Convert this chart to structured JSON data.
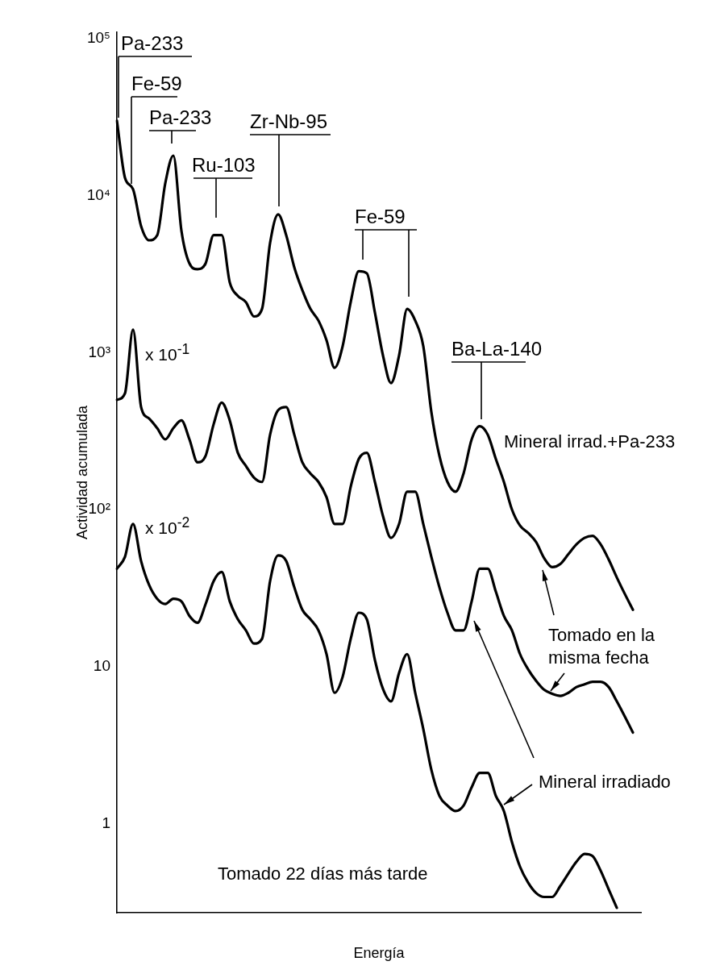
{
  "chart_data": {
    "type": "line",
    "xlabel": "Energía",
    "ylabel": "Actividad acumulada",
    "log": true,
    "marker": "none",
    "grid": false,
    "ylim": [
      0.27,
      110000
    ],
    "yticks": [
      {
        "value": 1,
        "label": "1"
      },
      {
        "value": 10,
        "label": "10"
      },
      {
        "value": 100,
        "label": "10²"
      },
      {
        "value": 1000,
        "label": "10³"
      },
      {
        "value": 10000,
        "label": "10⁴"
      },
      {
        "value": 100000,
        "label": "10⁵"
      }
    ],
    "categories": [
      null,
      null,
      null,
      null,
      null,
      null,
      null,
      null,
      null,
      null,
      null,
      null,
      null,
      null,
      null,
      null,
      null,
      null,
      null,
      null,
      null,
      null,
      null,
      null,
      null,
      null,
      null,
      null,
      null,
      null,
      null,
      null,
      null,
      null,
      null,
      null,
      null,
      null,
      null,
      null,
      null,
      null,
      null,
      null,
      null,
      null,
      null,
      null,
      null,
      null,
      null,
      null,
      null,
      null,
      null,
      null,
      null,
      null,
      null,
      null,
      null,
      null,
      null,
      null,
      null,
      null
    ],
    "series": [
      {
        "color": "#000000",
        "values": [
          30000,
          13000,
          11000,
          6400,
          5200,
          5600,
          12000,
          18000,
          6000,
          3700,
          3400,
          3700,
          5600,
          5600,
          2800,
          2300,
          2100,
          1700,
          1900,
          5000,
          7600,
          5600,
          3500,
          2500,
          1900,
          1600,
          1200,
          800,
          1100,
          2100,
          3300,
          3200,
          1800,
          960,
          640,
          960,
          1900,
          1600,
          1100,
          420,
          220,
          150,
          130,
          170,
          280,
          340,
          300,
          210,
          150,
          100,
          79,
          71,
          62,
          49,
          43,
          45,
          52,
          60,
          66,
          68,
          60,
          48,
          37,
          29,
          23,
          null
        ]
      },
      {
        "color": "#000000",
        "values": [
          500,
          550,
          1400,
          450,
          380,
          330,
          280,
          330,
          370,
          280,
          200,
          220,
          350,
          480,
          370,
          230,
          190,
          160,
          150,
          300,
          430,
          450,
          300,
          200,
          170,
          150,
          120,
          81,
          81,
          140,
          210,
          230,
          150,
          91,
          66,
          81,
          130,
          130,
          81,
          50,
          32,
          22,
          17,
          17,
          26,
          42,
          42,
          30,
          21,
          17,
          12,
          9.6,
          8.1,
          7.1,
          6.7,
          6.5,
          6.8,
          7.4,
          7.7,
          8.0,
          8.0,
          7.4,
          6.0,
          4.8,
          3.8,
          null
        ]
      },
      {
        "color": "#000000",
        "values": [
          42,
          50,
          81,
          47,
          33,
          27,
          25,
          27,
          26,
          21,
          19,
          25,
          35,
          40,
          26,
          20,
          17,
          14,
          15,
          35,
          51,
          47,
          32,
          23,
          20,
          17,
          12,
          6.8,
          8.6,
          15,
          22,
          20,
          11,
          7.2,
          6.0,
          9.1,
          12,
          6.8,
          4.0,
          2.2,
          1.5,
          1.3,
          1.2,
          1.3,
          1.7,
          2.1,
          2.1,
          1.5,
          1.2,
          0.76,
          0.53,
          0.42,
          0.36,
          0.34,
          0.34,
          0.4,
          0.48,
          0.57,
          0.64,
          0.62,
          0.5,
          0.38,
          0.29,
          null,
          null,
          null
        ]
      }
    ],
    "annotations": [
      "Pa-233",
      "Fe-59",
      "Pa-233",
      "Ru-103",
      "Zr-Nb-95",
      "Fe-59",
      "Ba-La-140",
      "x 10$^{-1}$",
      "x 10$^{-2}$",
      "Mineral irrad.+Pa-233",
      "Tomado en la misma fecha",
      "Mineral irradiado",
      "Tomado 22 días más tarde"
    ]
  }
}
